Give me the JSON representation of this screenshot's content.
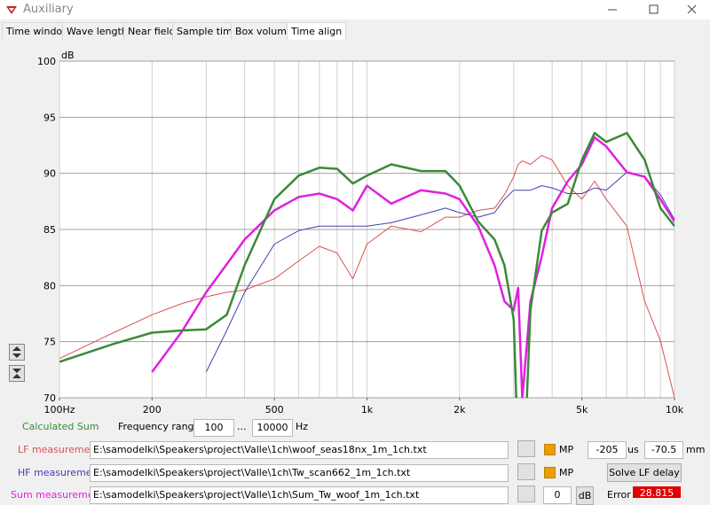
{
  "window": {
    "title": "Auxiliary"
  },
  "tabs": [
    "Time window",
    "Wave length",
    "Near field",
    "Sample time",
    "Box volume",
    "Time align"
  ],
  "chart_data": {
    "type": "line",
    "y_label": "dB",
    "xscale": "log",
    "x": [
      100,
      150,
      200,
      250,
      300,
      350,
      400,
      500,
      600,
      700,
      800,
      900,
      1000,
      1200,
      1500,
      1800,
      2000,
      2300,
      2600,
      2800,
      3000,
      3100,
      3200,
      3400,
      3700,
      4000,
      4500,
      5000,
      5500,
      6000,
      7000,
      8000,
      9000,
      10000
    ],
    "series": [
      {
        "name": "LF measurement",
        "color": "#d9534f",
        "width": 1,
        "values": [
          73.5,
          75.8,
          77.4,
          78.4,
          79.0,
          79.4,
          79.6,
          80.6,
          82.2,
          83.5,
          82.9,
          80.6,
          83.7,
          85.3,
          84.8,
          86.1,
          86.1,
          86.7,
          86.9,
          88.1,
          89.7,
          90.8,
          91.1,
          90.8,
          91.6,
          91.2,
          88.9,
          87.7,
          89.3,
          87.7,
          85.3,
          78.6,
          75.1,
          70.0
        ]
      },
      {
        "name": "HF measurement",
        "color": "#4040b0",
        "width": 1,
        "values": [
          null,
          null,
          null,
          null,
          72.3,
          76.0,
          79.4,
          83.7,
          84.9,
          85.3,
          85.3,
          85.3,
          85.3,
          85.6,
          86.3,
          86.9,
          86.5,
          86.1,
          86.5,
          87.7,
          88.5,
          88.5,
          88.5,
          88.5,
          88.9,
          88.7,
          88.2,
          88.2,
          88.7,
          88.5,
          90.1,
          89.7,
          88.1,
          85.9
        ]
      },
      {
        "name": "Sum measurement",
        "color": "#e020e0",
        "width": 2.5,
        "values": [
          null,
          null,
          72.3,
          75.9,
          79.4,
          81.9,
          84.1,
          86.7,
          87.9,
          88.2,
          87.7,
          86.7,
          88.9,
          87.3,
          88.5,
          88.2,
          87.7,
          85.3,
          81.8,
          78.6,
          77.8,
          79.8,
          69.9,
          78.6,
          82.6,
          86.9,
          89.3,
          90.8,
          93.2,
          92.4,
          90.1,
          89.7,
          87.7,
          85.7
        ]
      },
      {
        "name": "Calculated Sum",
        "color": "#3a8a3a",
        "width": 2.5,
        "values": [
          73.2,
          74.8,
          75.8,
          76.0,
          76.1,
          77.4,
          81.8,
          87.7,
          89.8,
          90.5,
          90.4,
          89.1,
          89.8,
          90.8,
          90.2,
          90.2,
          88.9,
          85.7,
          84.1,
          81.8,
          77.0,
          65.0,
          60.0,
          77.8,
          84.9,
          86.5,
          87.3,
          91.2,
          93.6,
          92.8,
          93.6,
          91.2,
          86.9,
          85.3
        ]
      }
    ],
    "xlim": [
      100,
      10000
    ],
    "ylim": [
      70,
      100
    ],
    "xticks": [
      {
        "value": 100,
        "label": "100Hz"
      },
      200,
      500,
      {
        "value": 1000,
        "label": "1k"
      },
      {
        "value": 2000,
        "label": "2k"
      },
      {
        "value": 5000,
        "label": "5k"
      },
      {
        "value": 10000,
        "label": "10k"
      }
    ],
    "x_gridlines": [
      100,
      200,
      300,
      400,
      500,
      600,
      700,
      800,
      900,
      1000,
      2000,
      3000,
      4000,
      5000,
      6000,
      7000,
      8000,
      9000,
      10000
    ],
    "yticks": [
      70,
      75,
      80,
      85,
      90,
      95,
      100
    ],
    "grid": true
  },
  "controls": {
    "frequency_range_label": "Frequency range",
    "freq_min": "100",
    "range_sep": "...",
    "freq_max": "10000",
    "freq_unit": "Hz",
    "lf_path": "E:\\samodelki\\Speakers\\project\\Valle\\1ch\\woof_seas18nx_1m_1ch.txt",
    "hf_path": "E:\\samodelki\\Speakers\\project\\Valle\\1ch\\Tw_scan662_1m_1ch.txt",
    "sum_path": "E:\\samodelki\\Speakers\\project\\Valle\\1ch\\Sum_Tw_woof_1m_1ch.txt",
    "mp_label_lf": "MP",
    "mp_label_hf": "MP",
    "delay": "-205",
    "delay_unit": "us",
    "distance": "-70.5",
    "distance_unit": "mm",
    "solve_button": "Solve LF delay",
    "gain": "0",
    "gain_unit": "dB",
    "error_label": "Error",
    "error_value": "28.815"
  }
}
